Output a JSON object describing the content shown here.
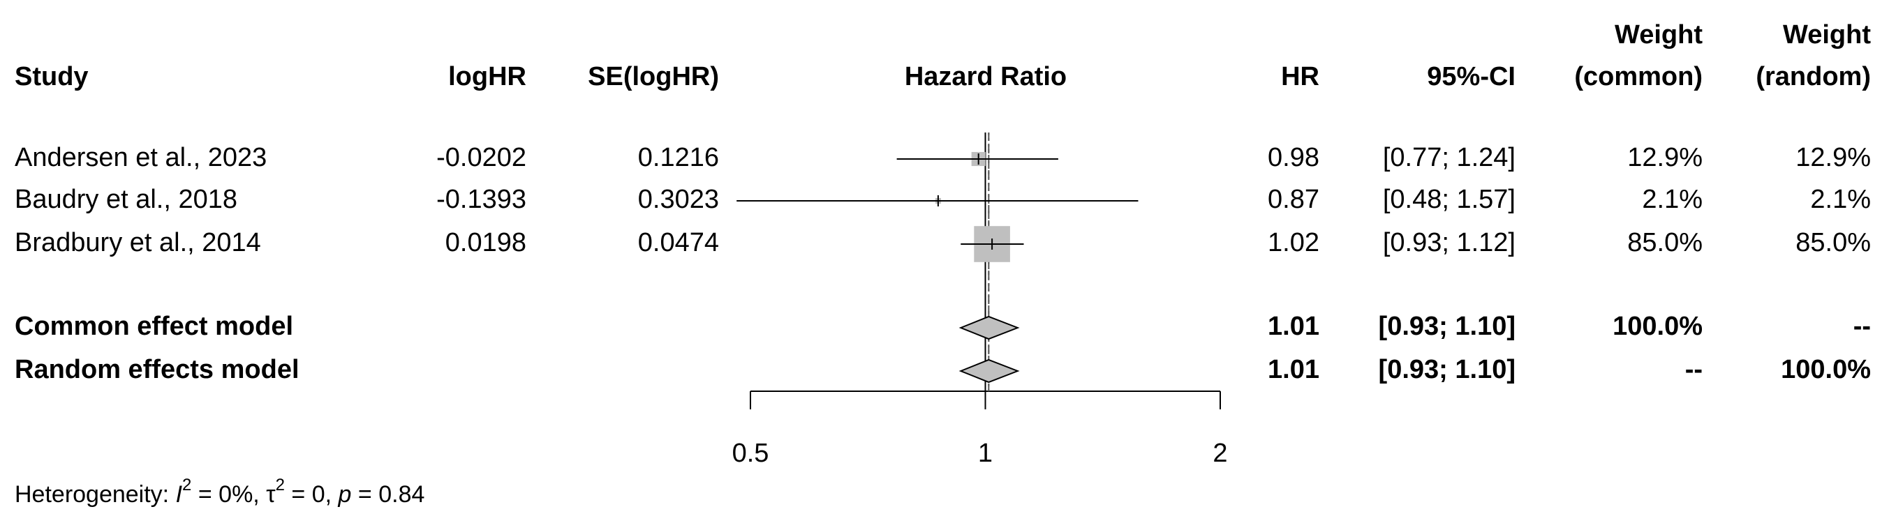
{
  "chart_data": {
    "type": "forest",
    "headers": {
      "study": "Study",
      "loghr": "logHR",
      "se": "SE(logHR)",
      "plot": "Hazard Ratio",
      "hr": "HR",
      "ci": "95%-CI",
      "weight_common": [
        "Weight",
        "(common)"
      ],
      "weight_random": [
        "Weight",
        "(random)"
      ]
    },
    "studies": [
      {
        "name": "Andersen et al., 2023",
        "loghr": -0.0202,
        "se": 0.1216,
        "hr": 0.98,
        "ci_lower": 0.77,
        "ci_upper": 1.24,
        "ci_label": "[0.77; 1.24]",
        "weight_common": 12.9,
        "weight_common_label": "12.9%",
        "weight_random": 12.9,
        "weight_random_label": "12.9%"
      },
      {
        "name": "Baudry et al., 2018",
        "loghr": -0.1393,
        "se": 0.3023,
        "hr": 0.87,
        "ci_lower": 0.48,
        "ci_upper": 1.57,
        "ci_label": "[0.48; 1.57]",
        "weight_common": 2.1,
        "weight_common_label": "2.1%",
        "weight_random": 2.1,
        "weight_random_label": "2.1%"
      },
      {
        "name": "Bradbury et al., 2014",
        "loghr": 0.0198,
        "se": 0.0474,
        "hr": 1.02,
        "ci_lower": 0.93,
        "ci_upper": 1.12,
        "ci_label": "[0.93; 1.12]",
        "weight_common": 85.0,
        "weight_common_label": "85.0%",
        "weight_random": 85.0,
        "weight_random_label": "85.0%"
      }
    ],
    "pooled": [
      {
        "name": "Common effect model",
        "hr": 1.01,
        "ci_lower": 0.93,
        "ci_upper": 1.1,
        "ci_label": "[0.93; 1.10]",
        "weight_common": 100,
        "weight_common_label": "100.0%",
        "weight_random": null,
        "weight_random_label": "--"
      },
      {
        "name": "Random effects model",
        "hr": 1.01,
        "ci_lower": 0.93,
        "ci_upper": 1.1,
        "ci_label": "[0.93; 1.10]",
        "weight_common": null,
        "weight_common_label": "--",
        "weight_random": 100,
        "weight_random_label": "100.0%"
      }
    ],
    "xlim": [
      0.5,
      2
    ],
    "xticks": [
      0.5,
      1,
      2
    ],
    "log_x": true,
    "reference_line": 1,
    "square_color": "#bfbfbf",
    "diamond_color": "#c0c0c0",
    "heterogeneity": [
      "Heterogeneity: ",
      "I",
      "2",
      " = 0%, ",
      "τ",
      "2",
      " = 0, ",
      "p",
      " = 0.84"
    ]
  }
}
